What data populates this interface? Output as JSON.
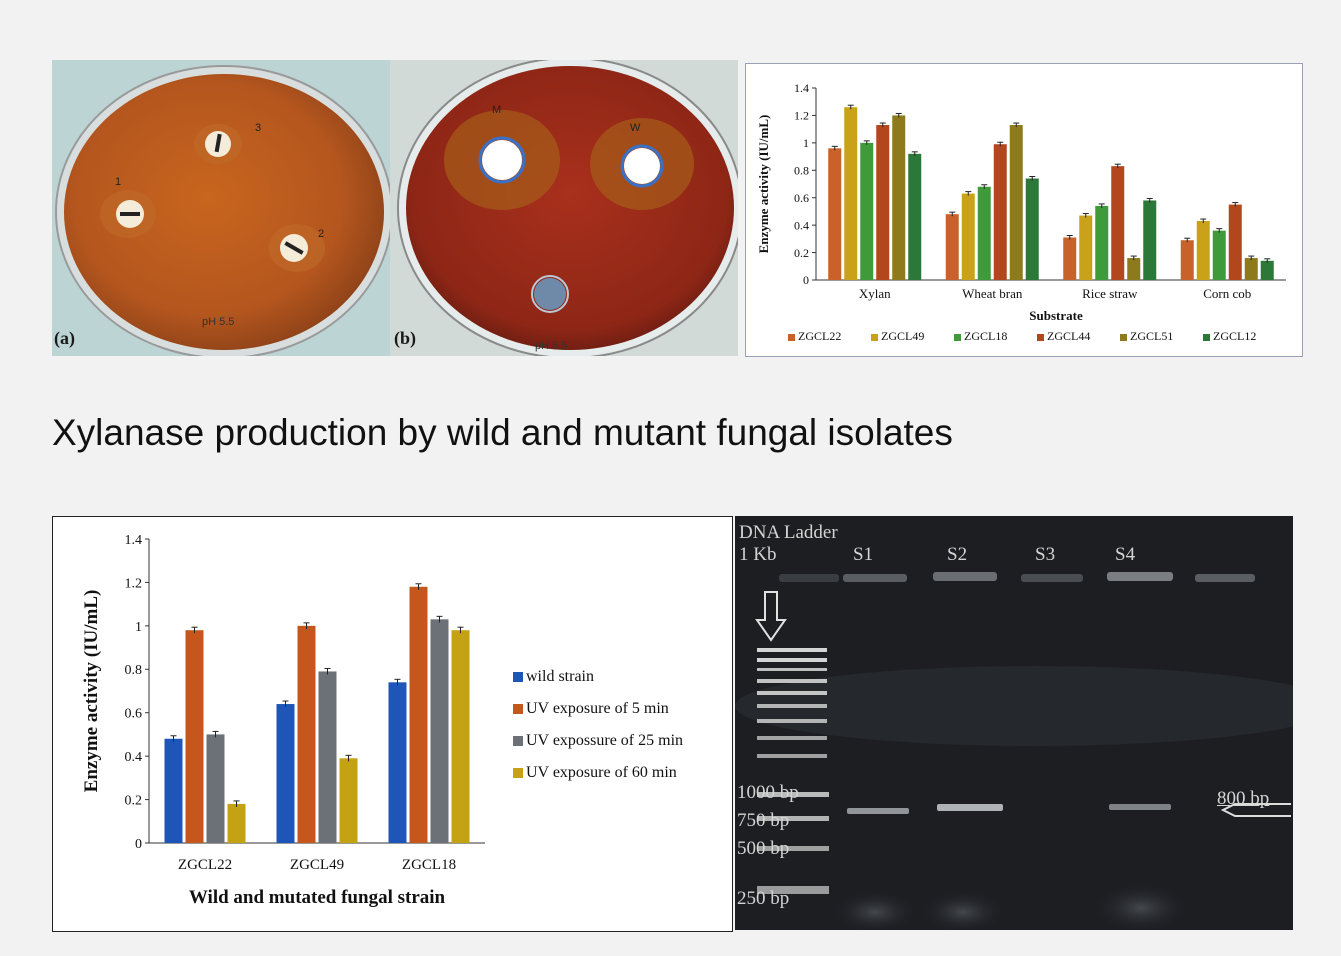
{
  "title": "Xylanase production by wild and mutant fungal isolates",
  "plate_a": {
    "label": "(a)",
    "ph": "pH 5.5",
    "marks": [
      "1",
      "2",
      "3"
    ]
  },
  "plate_b": {
    "label": "(b)",
    "ph": "pH 5.5",
    "marks": [
      "M",
      "W"
    ]
  },
  "chart_data": [
    {
      "type": "bar",
      "title": "",
      "xlabel": "Substrate",
      "ylabel": "Enzyme activity (IU/mL)",
      "ylim": [
        0,
        1.4
      ],
      "yticks": [
        "0",
        "0.2",
        "0.4",
        "0.6",
        "0.8",
        "1",
        "1.2",
        "1.4"
      ],
      "categories": [
        "Xylan",
        "Wheat bran",
        "Rice straw",
        "Corn cob"
      ],
      "legend_position": "bottom",
      "series": [
        {
          "name": "ZGCL22",
          "color": "#c8622a",
          "values": [
            0.96,
            0.48,
            0.31,
            0.29
          ]
        },
        {
          "name": "ZGCL49",
          "color": "#c9a21a",
          "values": [
            1.26,
            0.63,
            0.47,
            0.43
          ]
        },
        {
          "name": "ZGCL18",
          "color": "#3f9a3a",
          "values": [
            1.0,
            0.68,
            0.54,
            0.36
          ]
        },
        {
          "name": "ZGCL44",
          "color": "#b2471e",
          "values": [
            1.13,
            0.99,
            0.83,
            0.55
          ]
        },
        {
          "name": "ZGCL51",
          "color": "#8c7a1c",
          "values": [
            1.2,
            1.13,
            0.16,
            0.16
          ]
        },
        {
          "name": "ZGCL12",
          "color": "#2c7838",
          "values": [
            0.92,
            0.74,
            0.58,
            0.14
          ]
        }
      ]
    },
    {
      "type": "bar",
      "title": "",
      "xlabel": "Wild and mutated fungal strain",
      "ylabel": "Enzyme activity (IU/mL)",
      "ylim": [
        0,
        1.4
      ],
      "yticks": [
        "0",
        "0.2",
        "0.4",
        "0.6",
        "0.8",
        "1",
        "1.2",
        "1.4"
      ],
      "categories": [
        "ZGCL22",
        "ZGCL49",
        "ZGCL18"
      ],
      "legend_position": "right",
      "series": [
        {
          "name": "wild strain",
          "color": "#1f55b8",
          "values": [
            0.48,
            0.64,
            0.74
          ]
        },
        {
          "name": "UV exposure of 5 min",
          "color": "#c5571c",
          "values": [
            0.98,
            1.0,
            1.18
          ]
        },
        {
          "name": "UV expossure of 25 min",
          "color": "#6c7177",
          "values": [
            0.5,
            0.79,
            1.03
          ]
        },
        {
          "name": "UV exposure of 60 min",
          "color": "#c4a214",
          "values": [
            0.18,
            0.39,
            0.98
          ]
        }
      ]
    }
  ],
  "gel": {
    "header_line1": "DNA Ladder",
    "header_line2": "1 Kb",
    "lanes": [
      "S1",
      "S2",
      "S3",
      "S4"
    ],
    "ladder_labels": [
      "1000 bp",
      "750 bp",
      "500 bp",
      "250 bp"
    ],
    "band_label": "800 bp"
  }
}
